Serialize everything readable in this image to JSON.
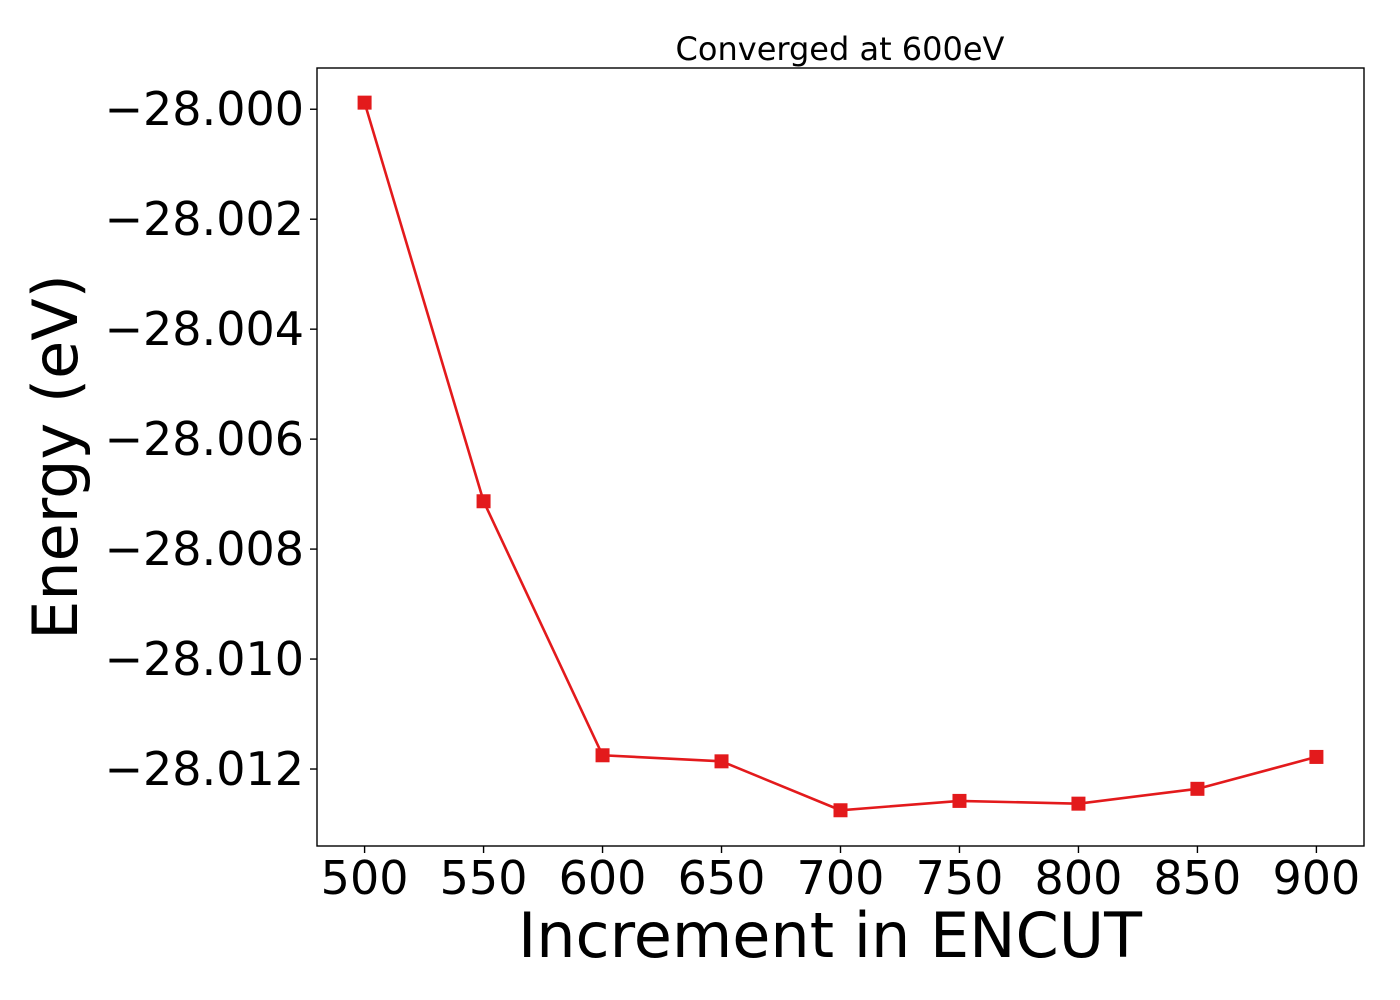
{
  "chart_data": {
    "type": "line",
    "title": "Converged at 600eV",
    "xlabel": "Increment in ENCUT",
    "ylabel": "Energy (eV)",
    "x": [
      500,
      550,
      600,
      650,
      700,
      750,
      800,
      850,
      900
    ],
    "series": [
      {
        "values": [
          -27.99988,
          -28.00713,
          -28.01175,
          -28.01186,
          -28.01275,
          -28.01258,
          -28.01263,
          -28.01236,
          -28.01178
        ],
        "color": "#e31a1c",
        "marker": "square"
      }
    ],
    "xticks": [
      500,
      550,
      600,
      650,
      700,
      750,
      800,
      850,
      900
    ],
    "xtick_labels": [
      "500",
      "550",
      "600",
      "650",
      "700",
      "750",
      "800",
      "850",
      "900"
    ],
    "yticks": [
      -28.0,
      -28.002,
      -28.004,
      -28.006,
      -28.008,
      -28.01,
      -28.012
    ],
    "ytick_labels": [
      "−28.000",
      "−28.002",
      "−28.004",
      "−28.006",
      "−28.008",
      "−28.010",
      "−28.012"
    ],
    "xlim": [
      480,
      920
    ],
    "ylim": [
      -28.0134,
      -27.99925
    ],
    "grid": false,
    "legend": "none"
  }
}
